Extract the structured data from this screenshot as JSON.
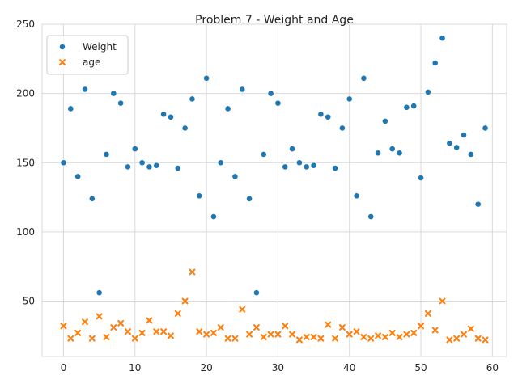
{
  "chart_data": {
    "type": "scatter",
    "title": "Problem 7 - Weight and Age",
    "xlabel": "",
    "ylabel": "",
    "xlim": [
      -3,
      62
    ],
    "ylim": [
      10,
      250
    ],
    "xticks": [
      0,
      10,
      20,
      30,
      40,
      50,
      60
    ],
    "yticks": [
      50,
      100,
      150,
      200,
      250
    ],
    "grid": true,
    "legend_position": "top-left",
    "series": [
      {
        "name": "Weight",
        "marker": "circle",
        "color": "#1f77b4",
        "x": [
          0,
          1,
          2,
          3,
          4,
          5,
          6,
          7,
          8,
          9,
          10,
          11,
          12,
          13,
          14,
          15,
          16,
          17,
          18,
          19,
          20,
          21,
          22,
          23,
          24,
          25,
          26,
          27,
          28,
          29,
          30,
          31,
          32,
          33,
          34,
          35,
          36,
          37,
          38,
          39,
          40,
          41,
          42,
          43,
          44,
          45,
          46,
          47,
          48,
          49,
          50,
          51,
          52,
          53,
          54,
          55,
          56,
          57,
          58,
          59
        ],
        "y": [
          150,
          189,
          140,
          203,
          124,
          56,
          156,
          200,
          193,
          147,
          160,
          150,
          147,
          148,
          185,
          183,
          146,
          175,
          196,
          126,
          211,
          111,
          150,
          189,
          140,
          203,
          124,
          56,
          156,
          200,
          193,
          147,
          160,
          150,
          147,
          148,
          185,
          183,
          146,
          175,
          196,
          126,
          211,
          111,
          157,
          180,
          160,
          157,
          190,
          191,
          139,
          201,
          222,
          240,
          164,
          161,
          170,
          156,
          120,
          175
        ]
      },
      {
        "name": "age",
        "marker": "x",
        "color": "#ff7f0e",
        "x": [
          0,
          1,
          2,
          3,
          4,
          5,
          6,
          7,
          8,
          9,
          10,
          11,
          12,
          13,
          14,
          15,
          16,
          17,
          18,
          19,
          20,
          21,
          22,
          23,
          24,
          25,
          26,
          27,
          28,
          29,
          30,
          31,
          32,
          33,
          34,
          35,
          36,
          37,
          38,
          39,
          40,
          41,
          42,
          43,
          44,
          45,
          46,
          47,
          48,
          49,
          50,
          51,
          52,
          53,
          54,
          55,
          56,
          57,
          58,
          59
        ],
        "y": [
          32,
          23,
          27,
          35,
          23,
          39,
          24,
          31,
          34,
          28,
          23,
          27,
          36,
          28,
          28,
          25,
          41,
          50,
          71,
          28,
          26,
          27,
          31,
          23,
          23,
          44,
          26,
          31,
          24,
          26,
          26,
          32,
          26,
          22,
          24,
          24,
          23,
          33,
          23,
          31,
          26,
          28,
          24,
          23,
          25,
          24,
          27,
          24,
          26,
          27,
          32,
          41,
          29,
          50,
          22,
          23,
          26,
          30,
          23,
          22
        ]
      }
    ]
  }
}
